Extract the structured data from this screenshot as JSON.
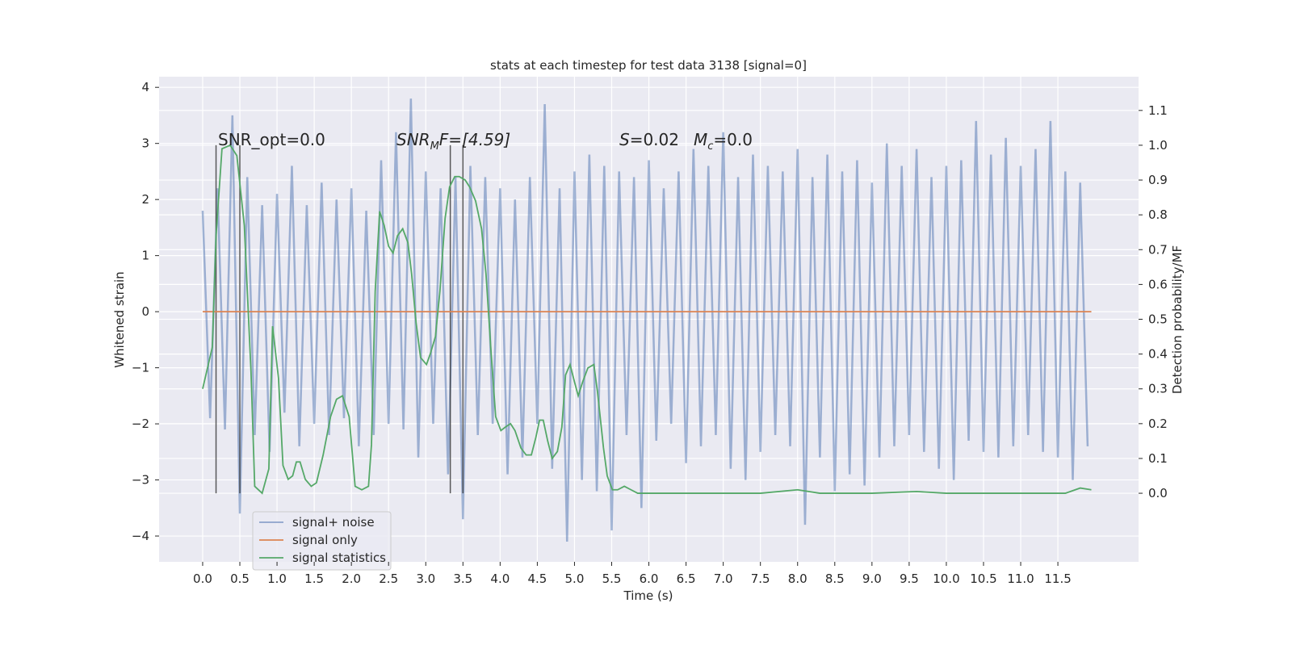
{
  "chart_data": {
    "type": "line",
    "title": "stats at each timestep for test data 3138 [signal=0]",
    "xlabel": "Time (s)",
    "ylabel": "Whitened strain",
    "y2label": "Detection probability/MF",
    "xlim": [
      -0.586,
      12.585
    ],
    "ylim": [
      -4.46,
      4.19
    ],
    "y2lim": [
      -0.197,
      1.197
    ],
    "xticks": [
      {
        "value": 0,
        "label": "0.0"
      },
      0.5,
      {
        "value": 1,
        "label": "1.0"
      },
      1.5,
      {
        "value": 2,
        "label": "2.0"
      },
      2.5,
      {
        "value": 3,
        "label": "3.0"
      },
      3.5,
      {
        "value": 4,
        "label": "4.0"
      },
      4.5,
      {
        "value": 5,
        "label": "5.0"
      },
      5.5,
      {
        "value": 6,
        "label": "6.0"
      },
      6.5,
      {
        "value": 7,
        "label": "7.0"
      },
      7.5,
      {
        "value": 8,
        "label": "8.0"
      },
      8.5,
      {
        "value": 9,
        "label": "9.0"
      },
      9.5,
      {
        "value": 10,
        "label": "10.0"
      },
      10.5,
      {
        "value": 11,
        "label": "11.0"
      },
      11.5
    ],
    "yticks": [
      {
        "value": -4,
        "label": "−4"
      },
      {
        "value": -3,
        "label": "−3"
      },
      {
        "value": -2,
        "label": "−2"
      },
      {
        "value": -1,
        "label": "−1"
      },
      0,
      1,
      2,
      3,
      4
    ],
    "y2ticks": [
      {
        "value": 0,
        "label": "0.0"
      },
      0.1,
      0.2,
      0.3,
      0.4,
      0.5,
      0.6,
      0.7,
      0.8,
      0.9,
      {
        "value": 1,
        "label": "1.0"
      },
      1.1
    ],
    "grid": true,
    "legend": "lower left",
    "annotations": [
      "SNR_opt=0.0",
      [
        "SNR",
        "M",
        "F=[4.59]"
      ],
      [
        "S",
        "=0.02",
        "M",
        "c",
        "=0.0"
      ]
    ],
    "vlines": [
      0.18,
      0.5,
      3.33,
      3.5
    ],
    "vline_range": [
      0,
      1
    ],
    "vline_color": "#333333",
    "series": [
      {
        "name": "signal+ noise",
        "color": "#4c72b0",
        "x": [
          0,
          0.1,
          0.2,
          0.3,
          0.4,
          0.5,
          0.6,
          0.7,
          0.8,
          0.9,
          1,
          1.1,
          1.2,
          1.3,
          1.4,
          1.5,
          1.6,
          1.7,
          1.8,
          1.9,
          2,
          2.1,
          2.2,
          2.3,
          2.4,
          2.5,
          2.6,
          2.7,
          2.8,
          2.9,
          3,
          3.1,
          3.2,
          3.3,
          3.4,
          3.5,
          3.6,
          3.7,
          3.8,
          3.9,
          4,
          4.1,
          4.2,
          4.3,
          4.4,
          4.5,
          4.6,
          4.7,
          4.8,
          4.9,
          5,
          5.1,
          5.2,
          5.3,
          5.4,
          5.5,
          5.6,
          5.7,
          5.8,
          5.9,
          6,
          6.1,
          6.2,
          6.3,
          6.4,
          6.5,
          6.6,
          6.7,
          6.8,
          6.9,
          7,
          7.1,
          7.2,
          7.3,
          7.4,
          7.5,
          7.6,
          7.7,
          7.8,
          7.9,
          8,
          8.1,
          8.2,
          8.3,
          8.4,
          8.5,
          8.6,
          8.7,
          8.8,
          8.9,
          9,
          9.1,
          9.2,
          9.3,
          9.4,
          9.5,
          9.6,
          9.7,
          9.8,
          9.9,
          10,
          10.1,
          10.2,
          10.3,
          10.4,
          10.5,
          10.6,
          10.7,
          10.8,
          10.9,
          11,
          11.1,
          11.2,
          11.3,
          11.4,
          11.5,
          11.6,
          11.7,
          11.8,
          11.9
        ],
        "values": [
          1.8,
          -1.9,
          2.2,
          -2.1,
          3.5,
          -3.6,
          2.4,
          -2.2,
          1.9,
          -2.5,
          2.1,
          -1.8,
          2.6,
          -2.4,
          1.9,
          -2.0,
          2.3,
          -2.2,
          2.0,
          -1.9,
          2.2,
          -2.4,
          1.8,
          -2.2,
          2.7,
          -2.0,
          3.2,
          -2.1,
          3.8,
          -2.6,
          2.5,
          -2.0,
          2.2,
          -2.9,
          2.4,
          -3.7,
          2.6,
          -2.2,
          2.4,
          -2.0,
          2.2,
          -2.9,
          2.0,
          -2.6,
          2.4,
          -2.0,
          3.7,
          -2.8,
          2.2,
          -4.1,
          2.5,
          -3.0,
          2.8,
          -3.2,
          2.6,
          -3.9,
          2.5,
          -2.2,
          2.4,
          -3.5,
          2.7,
          -2.3,
          2.2,
          -2.0,
          2.5,
          -2.7,
          2.9,
          -2.4,
          2.6,
          -2.2,
          3.2,
          -2.8,
          2.4,
          -3.0,
          2.8,
          -2.5,
          2.6,
          -2.2,
          2.5,
          -2.4,
          2.9,
          -3.8,
          2.4,
          -2.6,
          2.8,
          -3.2,
          2.5,
          -2.9,
          2.7,
          -3.1,
          2.3,
          -2.6,
          3.0,
          -2.4,
          2.6,
          -2.2,
          2.9,
          -2.5,
          2.4,
          -2.8,
          2.6,
          -3.0,
          2.7,
          -2.3,
          3.4,
          -2.5,
          2.8,
          -2.6,
          3.1,
          -2.4,
          2.6,
          -2.2,
          2.9,
          -2.5,
          3.4,
          -2.6,
          2.5,
          -3.0,
          2.3,
          -2.4
        ]
      },
      {
        "name": "signal only",
        "color": "#dd8452",
        "x": [
          0,
          11.95
        ],
        "values": [
          0,
          0
        ]
      },
      {
        "name": "signal statistics",
        "color": "#55a868",
        "axis": "y2",
        "x": [
          0,
          0.13,
          0.18,
          0.26,
          0.37,
          0.46,
          0.56,
          0.65,
          0.7,
          0.8,
          0.89,
          0.94,
          1.02,
          1.08,
          1.15,
          1.21,
          1.26,
          1.31,
          1.38,
          1.46,
          1.53,
          1.62,
          1.72,
          1.8,
          1.88,
          1.97,
          2.05,
          2.14,
          2.23,
          2.27,
          2.32,
          2.38,
          2.44,
          2.5,
          2.56,
          2.62,
          2.69,
          2.76,
          2.81,
          2.87,
          2.93,
          3.01,
          3.06,
          3.13,
          3.19,
          3.26,
          3.32,
          3.39,
          3.45,
          3.53,
          3.59,
          3.67,
          3.75,
          3.81,
          3.88,
          3.94,
          4.01,
          4.07,
          4.14,
          4.2,
          4.28,
          4.35,
          4.42,
          4.48,
          4.53,
          4.58,
          4.64,
          4.7,
          4.77,
          4.83,
          4.88,
          4.94,
          5,
          5.05,
          5.11,
          5.18,
          5.26,
          5.31,
          5.39,
          5.44,
          5.51,
          5.58,
          5.67,
          5.76,
          5.85,
          6.5,
          7,
          7.5,
          8,
          8.3,
          9,
          9.6,
          10,
          11,
          11.6,
          11.8,
          11.95
        ],
        "values": [
          0.3,
          0.42,
          0.74,
          0.99,
          1,
          0.97,
          0.77,
          0.35,
          0.02,
          0,
          0.07,
          0.48,
          0.33,
          0.08,
          0.04,
          0.05,
          0.09,
          0.09,
          0.04,
          0.02,
          0.03,
          0.11,
          0.22,
          0.27,
          0.28,
          0.22,
          0.02,
          0.01,
          0.02,
          0.14,
          0.58,
          0.81,
          0.77,
          0.71,
          0.69,
          0.74,
          0.76,
          0.72,
          0.63,
          0.49,
          0.39,
          0.37,
          0.4,
          0.45,
          0.58,
          0.79,
          0.88,
          0.91,
          0.91,
          0.9,
          0.88,
          0.84,
          0.76,
          0.63,
          0.4,
          0.22,
          0.18,
          0.19,
          0.2,
          0.18,
          0.13,
          0.11,
          0.11,
          0.16,
          0.21,
          0.21,
          0.15,
          0.1,
          0.12,
          0.19,
          0.34,
          0.37,
          0.32,
          0.28,
          0.32,
          0.36,
          0.37,
          0.29,
          0.13,
          0.05,
          0.01,
          0.01,
          0.02,
          0.01,
          0,
          0,
          0,
          0,
          0.01,
          0,
          0,
          0.005,
          0,
          0,
          0,
          0.015,
          0.01
        ]
      }
    ]
  }
}
